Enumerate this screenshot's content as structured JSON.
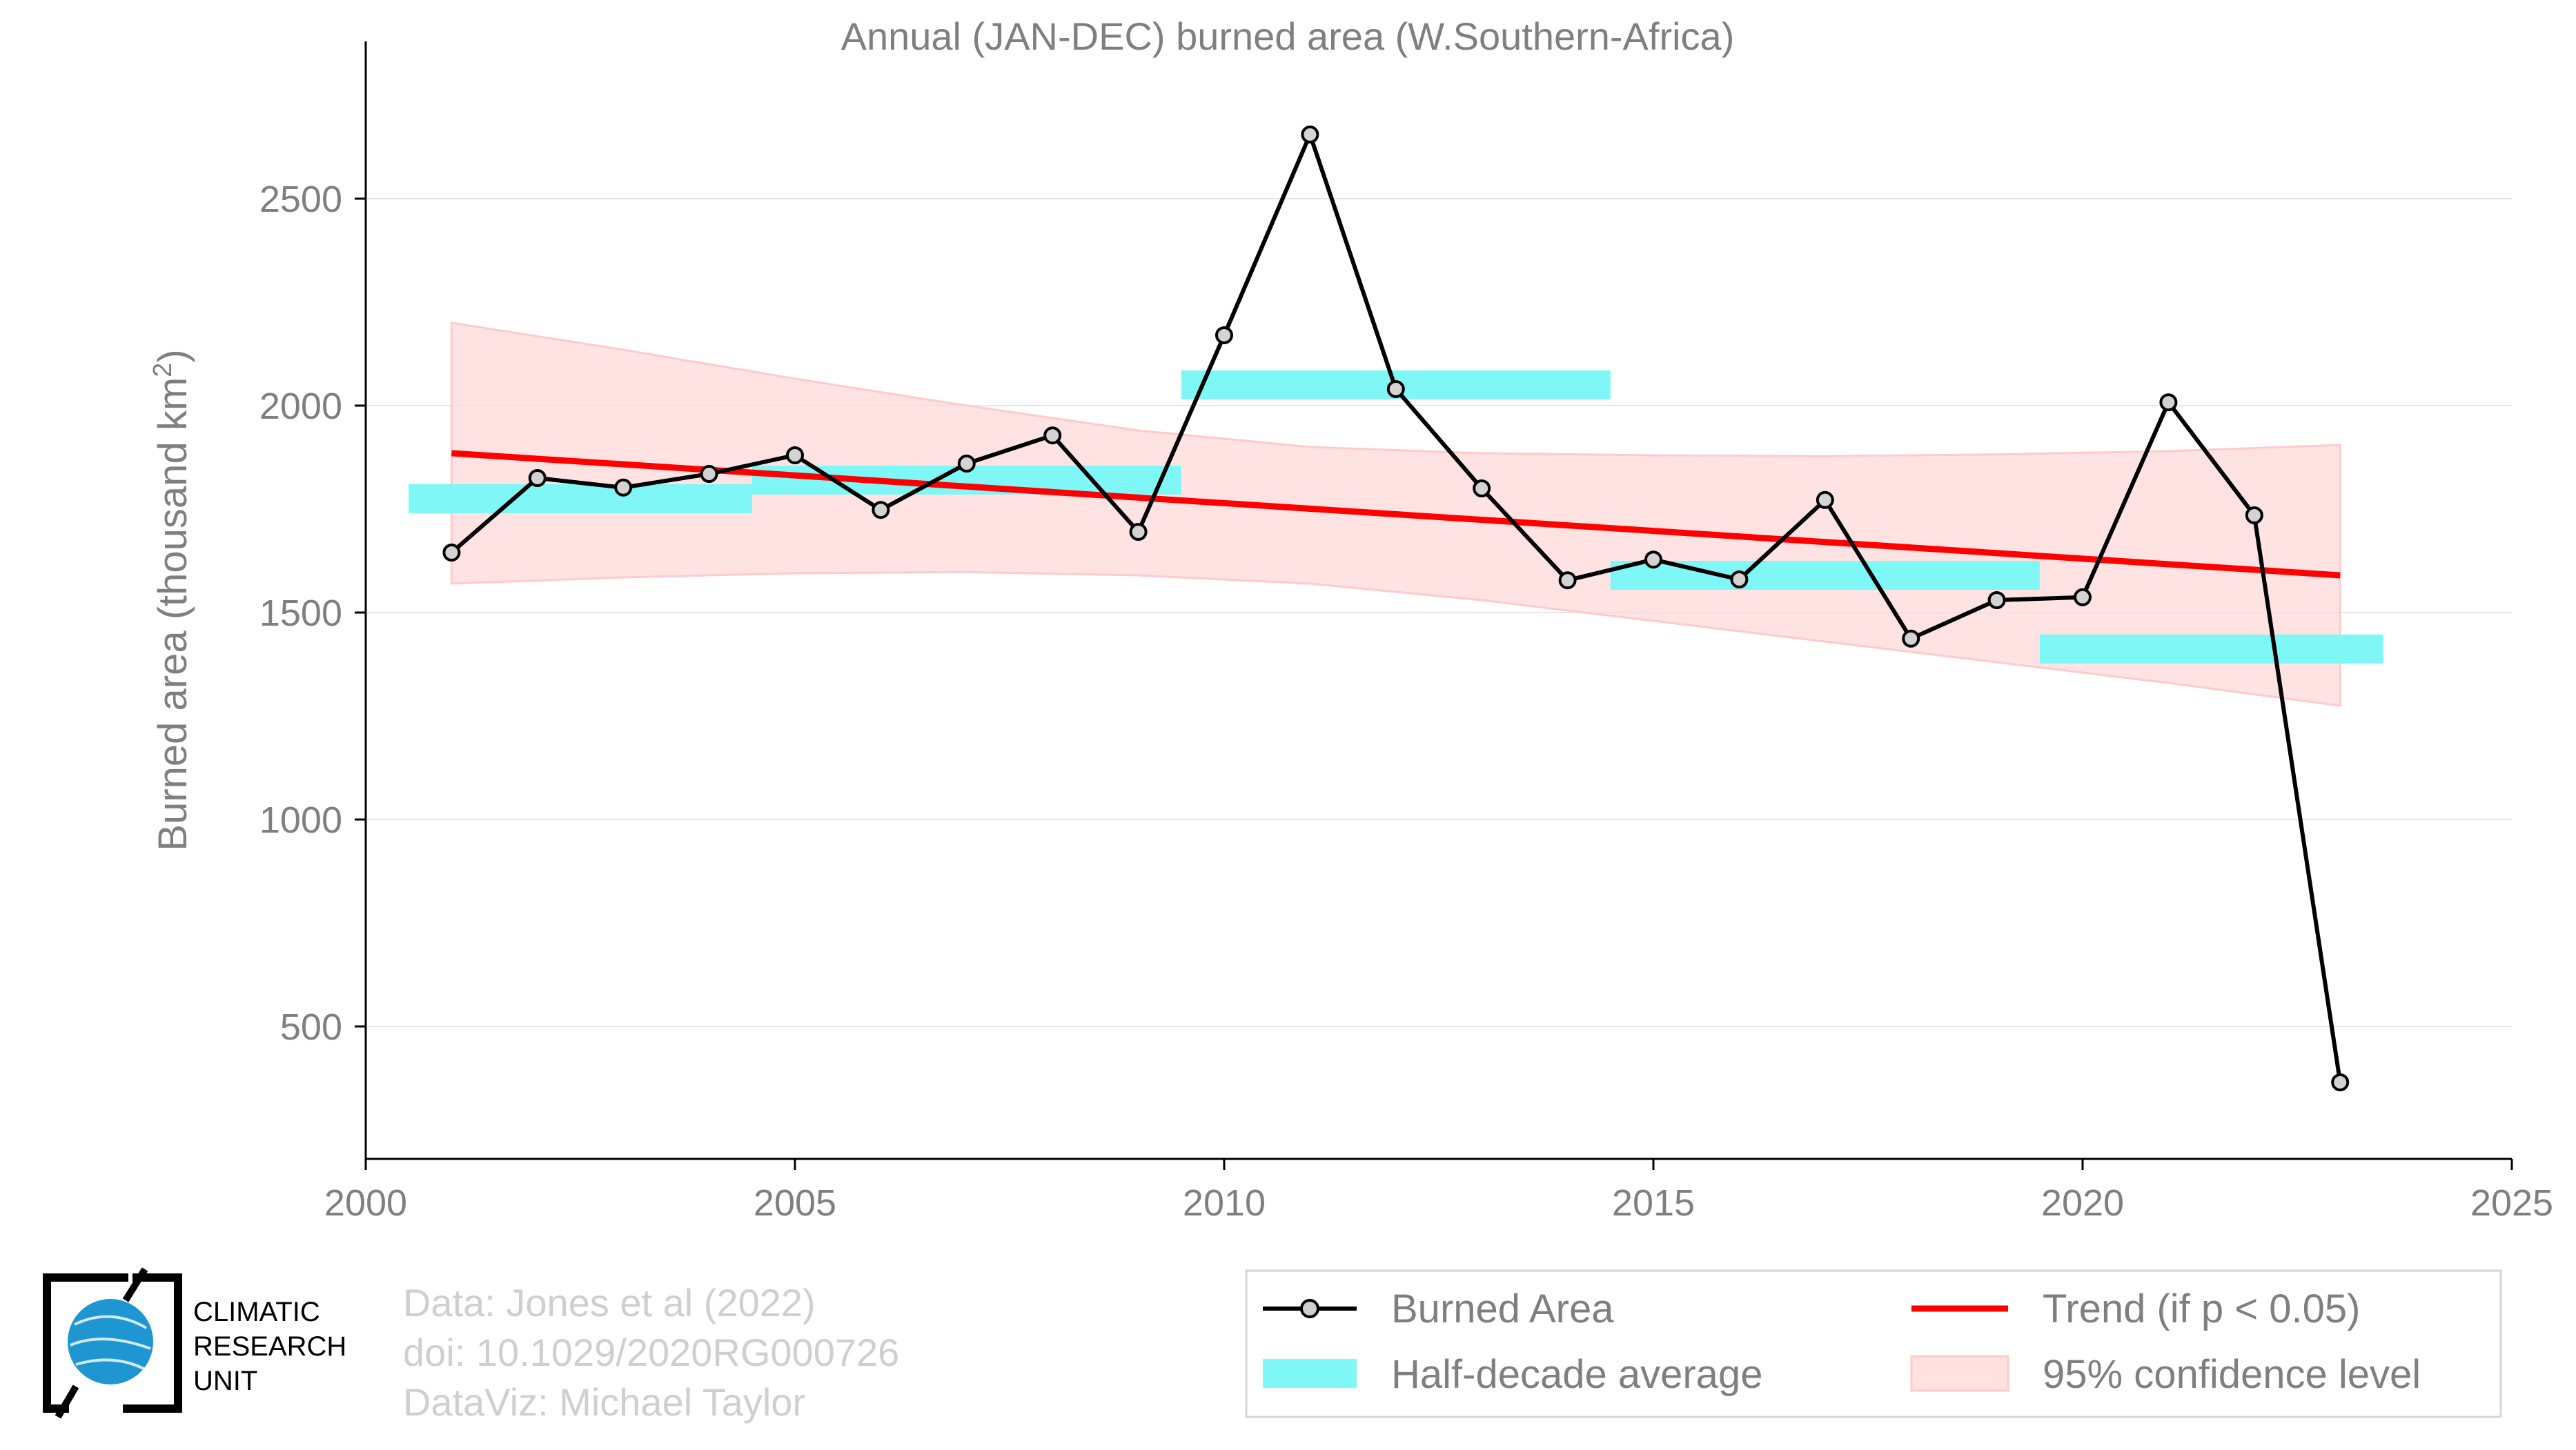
{
  "chart_data": {
    "type": "line",
    "title": "Annual (JAN-DEC) burned area (W.Southern-Africa)",
    "ylabel": "Burned area (thousand km",
    "ylabel_sup": "2",
    "ylabel_close": ")",
    "xlabel": "",
    "xlim": [
      2000,
      2025
    ],
    "ylim": [
      180,
      2780
    ],
    "x_ticks": [
      2000,
      2005,
      2010,
      2015,
      2020,
      2025
    ],
    "y_ticks": [
      500,
      1000,
      1500,
      2000,
      2500
    ],
    "grid": true,
    "legend_position": "bottom-right",
    "series": [
      {
        "name": "Burned Area",
        "color": "#000000",
        "x": [
          2001,
          2002,
          2003,
          2004,
          2005,
          2006,
          2007,
          2008,
          2009,
          2010,
          2011,
          2012,
          2013,
          2014,
          2015,
          2016,
          2017,
          2018,
          2019,
          2020,
          2021,
          2022,
          2023
        ],
        "y": [
          1645,
          1825,
          1802,
          1835,
          1880,
          1748,
          1860,
          1928,
          1695,
          2170,
          2655,
          2040,
          1800,
          1578,
          1628,
          1580,
          1772,
          1437,
          1530,
          1537,
          2008,
          1735,
          365
        ]
      }
    ],
    "half_decade_average": {
      "name": "Half-decade average",
      "color": "#7ff7f7",
      "segments": [
        {
          "x0": 2000.5,
          "x1": 2004.5,
          "y": 1775
        },
        {
          "x0": 2004.5,
          "x1": 2009.5,
          "y": 1820
        },
        {
          "x0": 2009.5,
          "x1": 2014.5,
          "y": 2050
        },
        {
          "x0": 2014.5,
          "x1": 2019.5,
          "y": 1590
        },
        {
          "x0": 2019.5,
          "x1": 2023.5,
          "y": 1412
        }
      ]
    },
    "trend": {
      "name": "Trend (if p < 0.05)",
      "color": "#ff0000",
      "x": [
        2001,
        2023
      ],
      "y": [
        1885,
        1590
      ]
    },
    "confidence": {
      "name": "95% confidence level",
      "color": "#ffd9d9",
      "x": [
        2001,
        2003,
        2005,
        2007,
        2009,
        2011,
        2013,
        2015,
        2017,
        2019,
        2021,
        2023
      ],
      "upper": [
        2200,
        2135,
        2065,
        2000,
        1940,
        1900,
        1885,
        1880,
        1878,
        1882,
        1890,
        1905
      ],
      "lower": [
        1570,
        1585,
        1595,
        1598,
        1590,
        1570,
        1530,
        1480,
        1430,
        1380,
        1330,
        1275
      ]
    }
  },
  "credits": {
    "line1": "Data: Jones et al (2022)",
    "line2": "doi: 10.1029/2020RG000726",
    "line3": "DataViz: Michael Taylor"
  },
  "logo": {
    "line1": "CLIMATIC",
    "line2": "RESEARCH",
    "line3": "UNIT",
    "globe_color": "#1e96d2"
  }
}
